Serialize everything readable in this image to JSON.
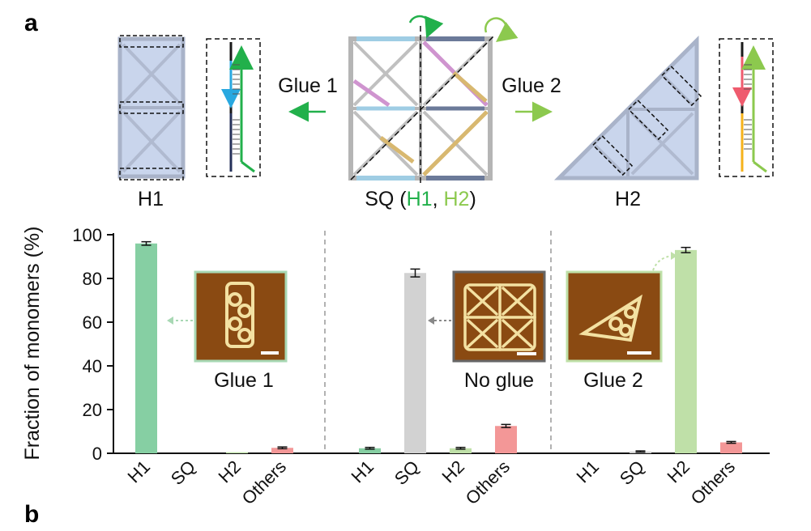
{
  "panel_labels": {
    "a": "a",
    "b": "b"
  },
  "schematic": {
    "left_label": "H1",
    "right_label": "H2",
    "center_label_prefix": "SQ (",
    "center_label_h1": "H1",
    "center_label_sep": ", ",
    "center_label_h2": "H2",
    "center_label_suffix": ")",
    "glue1_arrow_label": "Glue 1",
    "glue2_arrow_label": "Glue 2"
  },
  "colors": {
    "h1_green": "#22b04b",
    "h2_green": "#8cc94e",
    "bar_h1": "#86cfa3",
    "bar_sq": "#d2d2d2",
    "bar_h2": "#bfe0a8",
    "bar_others": "#f39797",
    "afm_brown": "#8a4a12"
  },
  "inset_labels": [
    "Glue 1",
    "No glue",
    "Glue 2"
  ],
  "chart_data": {
    "type": "bar",
    "ylabel": "Fraction of monomers (%)",
    "ylim": [
      0,
      100
    ],
    "yticks": [
      0,
      20,
      40,
      60,
      80,
      100
    ],
    "categories": [
      "H1",
      "SQ",
      "H2",
      "Others"
    ],
    "groups": [
      {
        "name": "Glue 1",
        "values": [
          96,
          0,
          0.5,
          2.5
        ],
        "errors": [
          0.8,
          0,
          0,
          0.4
        ]
      },
      {
        "name": "No glue",
        "values": [
          2.3,
          82.5,
          2.3,
          12.5
        ],
        "errors": [
          0.4,
          1.8,
          0.4,
          0.7
        ]
      },
      {
        "name": "Glue 2",
        "values": [
          0,
          0.8,
          93,
          5
        ],
        "errors": [
          0,
          0.3,
          1.2,
          0.4
        ]
      }
    ]
  }
}
